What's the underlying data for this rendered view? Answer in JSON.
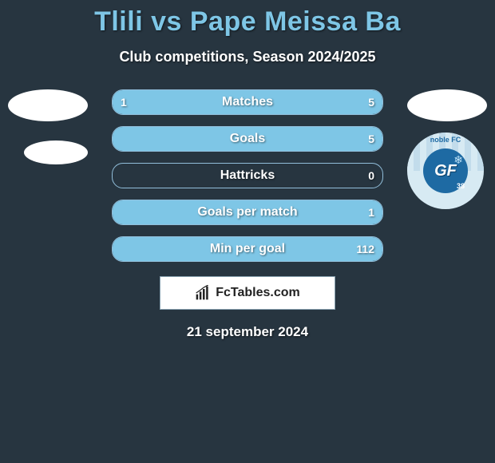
{
  "title": "Tlili vs Pape Meissa Ba",
  "subtitle": "Club competitions, Season 2024/2025",
  "date": "21 september 2024",
  "brand": "FcTables.com",
  "colors": {
    "background": "#273540",
    "accent": "#7ec6e6",
    "bar_border": "#91beda",
    "text": "#ffffff"
  },
  "club_badge": {
    "text_top": "noble FC",
    "letters": "GF",
    "number": "38"
  },
  "bars": [
    {
      "label": "Matches",
      "left_value": "1",
      "right_value": "5",
      "left_fill_pct": 16.7,
      "right_fill_pct": 83.3
    },
    {
      "label": "Goals",
      "left_value": "",
      "right_value": "5",
      "left_fill_pct": 0,
      "right_fill_pct": 100
    },
    {
      "label": "Hattricks",
      "left_value": "",
      "right_value": "0",
      "left_fill_pct": 0,
      "right_fill_pct": 0
    },
    {
      "label": "Goals per match",
      "left_value": "",
      "right_value": "1",
      "left_fill_pct": 0,
      "right_fill_pct": 100
    },
    {
      "label": "Min per goal",
      "left_value": "",
      "right_value": "112",
      "left_fill_pct": 0,
      "right_fill_pct": 100
    }
  ]
}
